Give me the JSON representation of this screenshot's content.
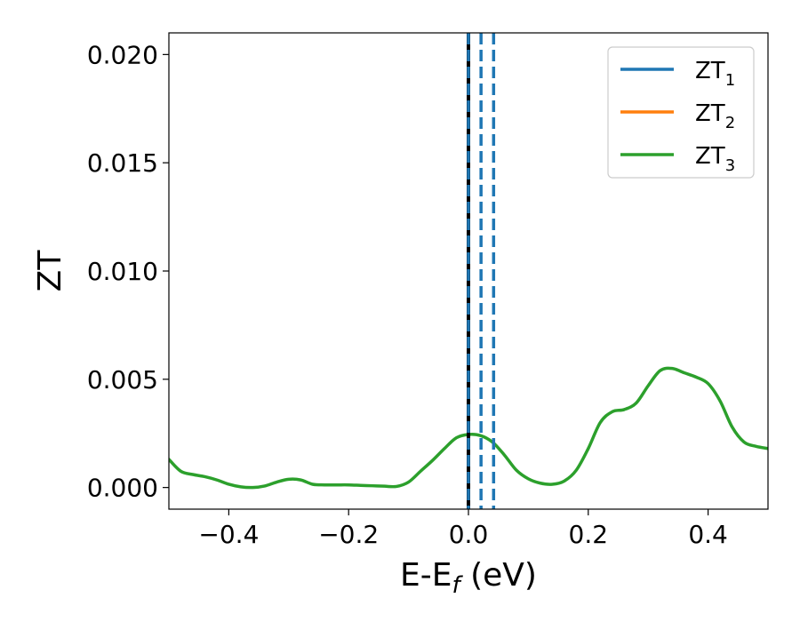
{
  "chart_data": {
    "type": "line",
    "xlabel": "E-E",
    "xlabel_sub": "f",
    "xlabel_unit": " (eV)",
    "ylabel": "ZT",
    "xlim": [
      -0.5,
      0.5
    ],
    "ylim": [
      -0.001,
      0.021
    ],
    "xticks": [
      -0.4,
      -0.2,
      0.0,
      0.2,
      0.4
    ],
    "xtick_labels": [
      "−0.4",
      "−0.2",
      "0.0",
      "0.2",
      "0.4"
    ],
    "yticks": [
      0.0,
      0.005,
      0.01,
      0.015,
      0.02
    ],
    "ytick_labels": [
      "0.000",
      "0.005",
      "0.010",
      "0.015",
      "0.020"
    ],
    "grid": false,
    "legend_position": "top-right",
    "legend": [
      {
        "main": "ZT",
        "sub": "1",
        "color": "#1f77b4"
      },
      {
        "main": "ZT",
        "sub": "2",
        "color": "#ff7f0e"
      },
      {
        "main": "ZT",
        "sub": "3",
        "color": "#2ca02c"
      }
    ],
    "vlines": [
      {
        "x": 0.0,
        "color": "#000000",
        "style": "solid"
      },
      {
        "x": 0.0,
        "color": "#1f77b4",
        "style": "dashed"
      },
      {
        "x": 0.021,
        "color": "#1f77b4",
        "style": "dashed"
      },
      {
        "x": 0.042,
        "color": "#1f77b4",
        "style": "dashed"
      }
    ],
    "series": [
      {
        "color": "#2ca02c",
        "x": [
          -0.5,
          -0.48,
          -0.46,
          -0.44,
          -0.42,
          -0.4,
          -0.38,
          -0.36,
          -0.34,
          -0.32,
          -0.3,
          -0.28,
          -0.26,
          -0.24,
          -0.22,
          -0.2,
          -0.18,
          -0.16,
          -0.14,
          -0.12,
          -0.1,
          -0.08,
          -0.06,
          -0.04,
          -0.02,
          0.0,
          0.02,
          0.04,
          0.06,
          0.08,
          0.1,
          0.12,
          0.14,
          0.16,
          0.18,
          0.2,
          0.22,
          0.24,
          0.26,
          0.28,
          0.3,
          0.32,
          0.34,
          0.36,
          0.38,
          0.4,
          0.42,
          0.44,
          0.46,
          0.48,
          0.5
        ],
        "values": [
          0.0013,
          0.00075,
          0.0006,
          0.0005,
          0.00035,
          0.00015,
          3e-05,
          0.0,
          7e-05,
          0.00025,
          0.00038,
          0.00035,
          0.00015,
          0.00012,
          0.00012,
          0.00012,
          0.0001,
          8e-05,
          6e-05,
          5e-05,
          0.00025,
          0.00075,
          0.00125,
          0.0018,
          0.0023,
          0.00245,
          0.0024,
          0.0021,
          0.0015,
          0.0008,
          0.0004,
          0.0002,
          0.00015,
          0.0003,
          0.0008,
          0.0018,
          0.003,
          0.0035,
          0.0036,
          0.0039,
          0.0047,
          0.0054,
          0.0055,
          0.0053,
          0.0051,
          0.0048,
          0.004,
          0.0028,
          0.0021,
          0.0019,
          0.0018
        ]
      }
    ]
  }
}
